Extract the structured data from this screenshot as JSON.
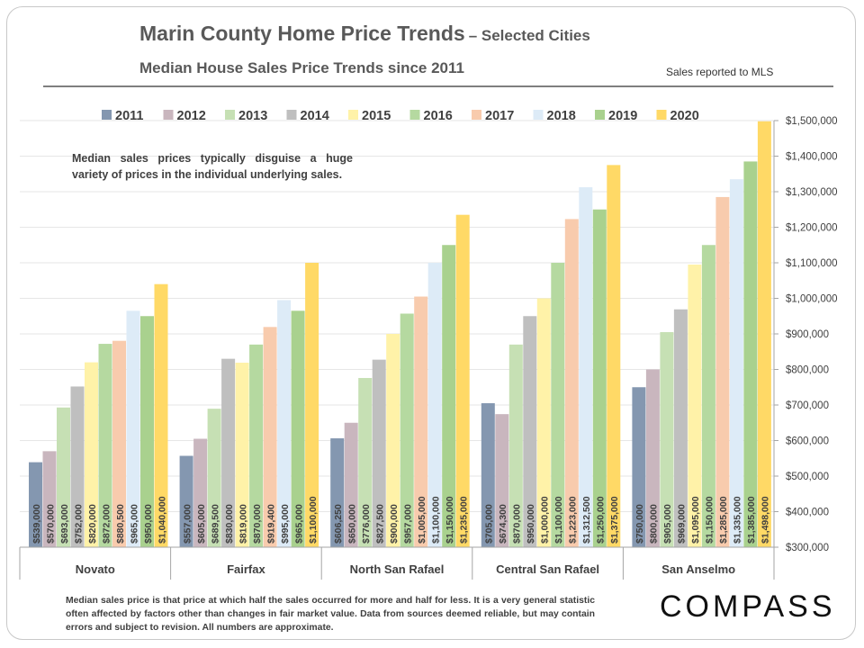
{
  "header": {
    "title": "Marin County Home Price Trends",
    "title_suffix": "– Selected Cities",
    "subtitle": "Median House Sales Price Trends since 2011",
    "source_note": "Sales reported to MLS"
  },
  "annotation": "Median sales prices typically disguise a huge variety of prices in the individual underlying sales.",
  "footnote": "Median sales price is that price at which half the sales occurred for more and half for less. It is a very general statistic often affected by factors other than changes in fair market value. Data from sources deemed reliable, but may contain errors and subject to revision. All numbers are approximate.",
  "logo": "COMPASS",
  "chart_data": {
    "type": "bar",
    "categories": [
      "Novato",
      "Fairfax",
      "North San Rafael",
      "Central San Rafael",
      "San Anselmo"
    ],
    "ylim": [
      300000,
      1500000
    ],
    "yticks": [
      300000,
      400000,
      500000,
      600000,
      700000,
      800000,
      900000,
      1000000,
      1100000,
      1200000,
      1300000,
      1400000,
      1500000
    ],
    "ytick_labels": [
      "$300,000",
      "$400,000",
      "$500,000",
      "$600,000",
      "$700,000",
      "$800,000",
      "$900,000",
      "$1,000,000",
      "$1,100,000",
      "$1,200,000",
      "$1,300,000",
      "$1,400,000",
      "$1,500,000"
    ],
    "y_axis_side": "right",
    "grid": true,
    "legend_position": "top",
    "series": [
      {
        "name": "2011",
        "color": "#8497b0",
        "values": [
          539000,
          557000,
          606250,
          705000,
          750000
        ],
        "labels": [
          "$539,000",
          "$557,000",
          "$606,250",
          "$705,000",
          "$750,000"
        ]
      },
      {
        "name": "2012",
        "color": "#c9b6be",
        "values": [
          570000,
          605000,
          650000,
          674300,
          800000
        ],
        "labels": [
          "$570,000",
          "$605,000",
          "$650,000",
          "$674,300",
          "$800,000"
        ]
      },
      {
        "name": "2013",
        "color": "#c6e0b4",
        "values": [
          693000,
          689500,
          776000,
          870000,
          905000
        ],
        "labels": [
          "$693,000",
          "$689,500",
          "$776,000",
          "$870,000",
          "$905,000"
        ]
      },
      {
        "name": "2014",
        "color": "#bfbfbf",
        "values": [
          752000,
          830000,
          827500,
          950000,
          969000
        ],
        "labels": [
          "$752,000",
          "$830,000",
          "$827,500",
          "$950,000",
          "$969,000"
        ]
      },
      {
        "name": "2015",
        "color": "#fff2a8",
        "values": [
          820000,
          819000,
          900000,
          1000000,
          1095000
        ],
        "labels": [
          "$820,000",
          "$819,000",
          "$900,000",
          "$1,000,000",
          "$1,095,000"
        ]
      },
      {
        "name": "2016",
        "color": "#b5d9a0",
        "values": [
          872000,
          870000,
          957000,
          1100000,
          1150000
        ],
        "labels": [
          "$872,000",
          "$870,000",
          "$957,000",
          "$1,100,000",
          "$1,150,000"
        ]
      },
      {
        "name": "2017",
        "color": "#f8cbad",
        "values": [
          880500,
          919400,
          1005000,
          1223000,
          1285000
        ],
        "labels": [
          "$880,500",
          "$919,400",
          "$1,005,000",
          "$1,223,000",
          "$1,285,000"
        ]
      },
      {
        "name": "2018",
        "color": "#ddebf7",
        "values": [
          965000,
          995000,
          1100000,
          1312500,
          1335000
        ],
        "labels": [
          "$965,000",
          "$995,000",
          "$1,100,000",
          "$1,312,500",
          "$1,335,000"
        ]
      },
      {
        "name": "2019",
        "color": "#a9d18e",
        "values": [
          950000,
          965000,
          1150000,
          1250000,
          1385000
        ],
        "labels": [
          "$950,000",
          "$965,000",
          "$1,150,000",
          "$1,250,000",
          "$1,385,000"
        ]
      },
      {
        "name": "2020",
        "color": "#ffd966",
        "values": [
          1040000,
          1100000,
          1235000,
          1375000,
          1498000
        ],
        "labels": [
          "$1,040,000",
          "$1,100,000",
          "$1,235,000",
          "$1,375,000",
          "$1,498,000"
        ]
      }
    ]
  }
}
